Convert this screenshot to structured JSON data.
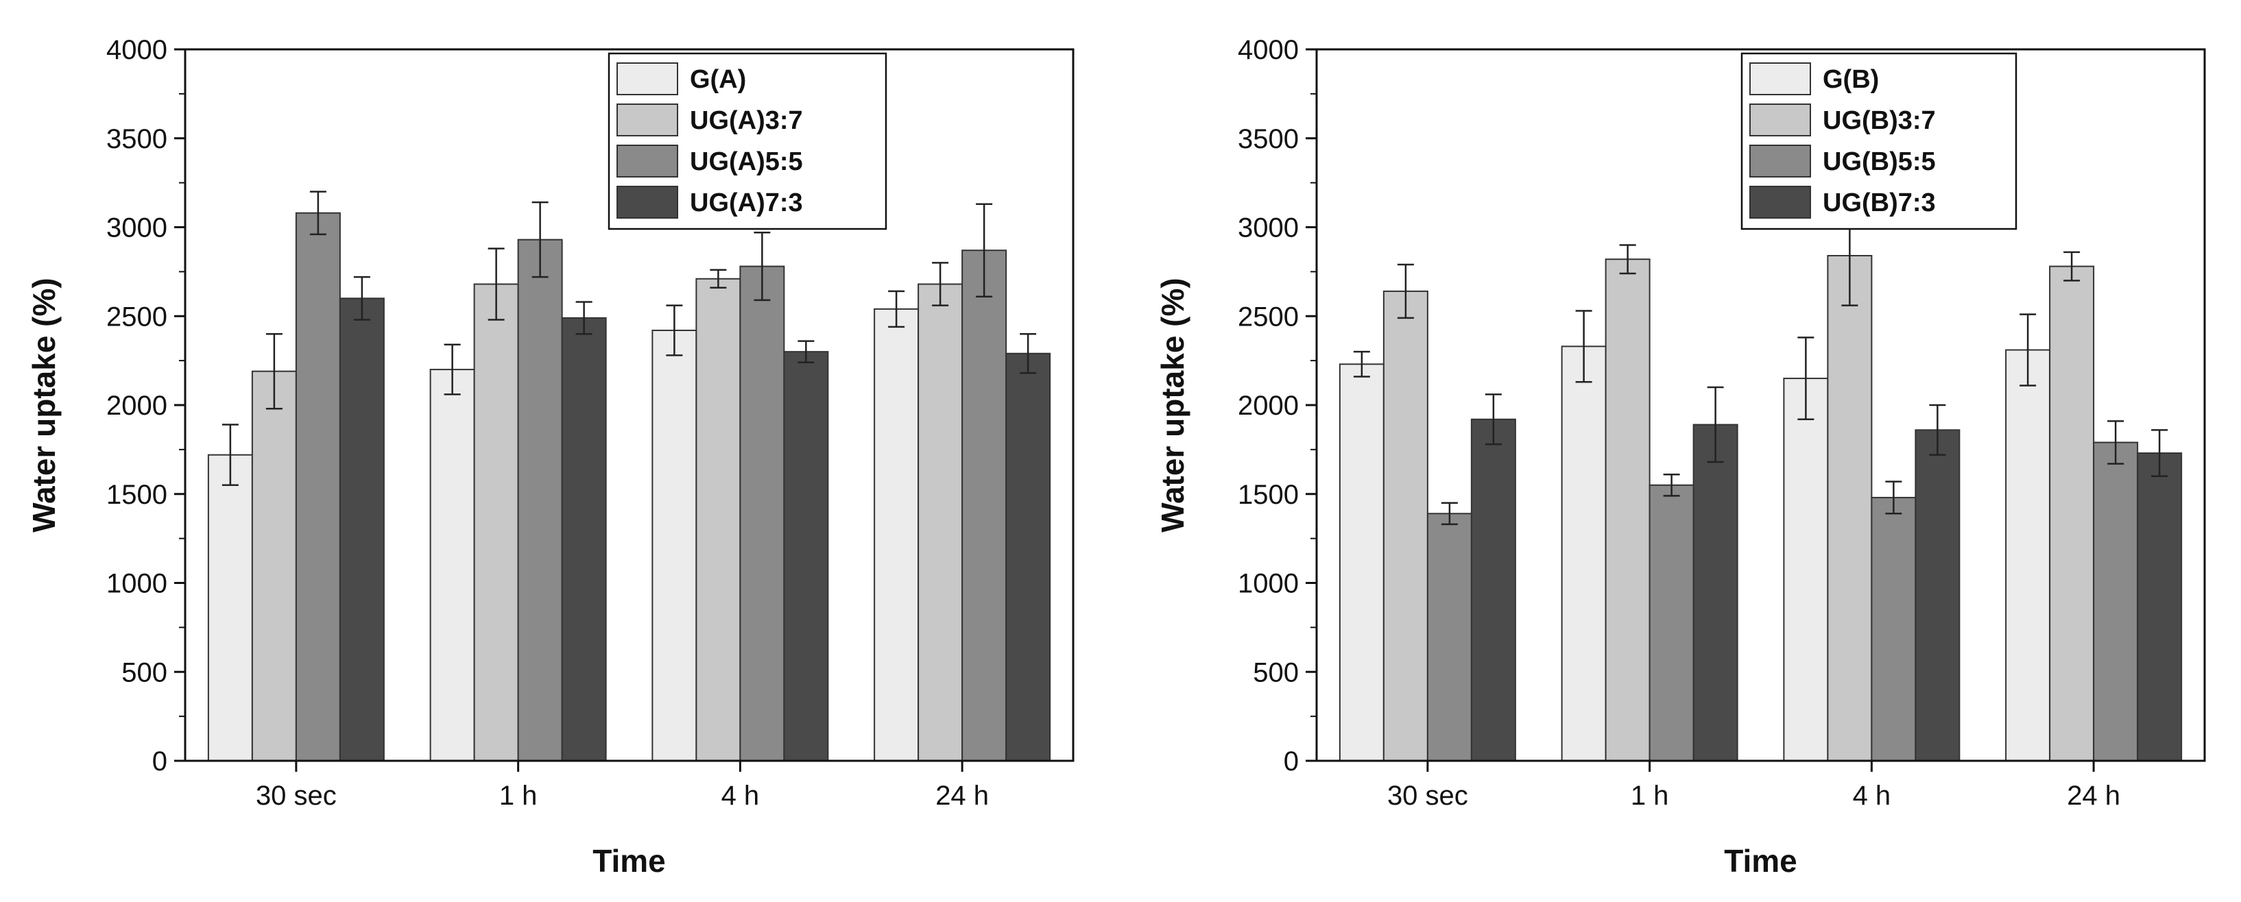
{
  "chart_data": [
    {
      "type": "bar",
      "title": "",
      "xlabel": "Time",
      "ylabel": "Water uptake (%)",
      "ylim": [
        0,
        4000
      ],
      "yticks": [
        "0",
        "500",
        "1000",
        "1500",
        "2000",
        "2500",
        "3000",
        "3500",
        "4000"
      ],
      "categories": [
        "30 sec",
        "1 h",
        "4 h",
        "24 h"
      ],
      "legend_position": "top-center",
      "series": [
        {
          "name": "G(A)",
          "color": "#ececec",
          "values": [
            1720,
            2200,
            2420,
            2540
          ],
          "errors": [
            170,
            140,
            140,
            100
          ]
        },
        {
          "name": "UG(A)3:7",
          "color": "#c8c8c8",
          "values": [
            2190,
            2680,
            2710,
            2680
          ],
          "errors": [
            210,
            200,
            50,
            120
          ]
        },
        {
          "name": "UG(A)5:5",
          "color": "#8a8a8a",
          "values": [
            3080,
            2930,
            2780,
            2870
          ],
          "errors": [
            120,
            210,
            190,
            260
          ]
        },
        {
          "name": "UG(A)7:3",
          "color": "#4a4a4a",
          "values": [
            2600,
            2490,
            2300,
            2290
          ],
          "errors": [
            120,
            90,
            60,
            110
          ]
        }
      ]
    },
    {
      "type": "bar",
      "title": "",
      "xlabel": "Time",
      "ylabel": "Water uptake (%)",
      "ylim": [
        0,
        4000
      ],
      "yticks": [
        "0",
        "500",
        "1000",
        "1500",
        "2000",
        "2500",
        "3000",
        "3500",
        "4000"
      ],
      "categories": [
        "30 sec",
        "1 h",
        "4 h",
        "24 h"
      ],
      "legend_position": "top-center",
      "series": [
        {
          "name": "G(B)",
          "color": "#ececec",
          "values": [
            2230,
            2330,
            2150,
            2310
          ],
          "errors": [
            70,
            200,
            230,
            200
          ]
        },
        {
          "name": "UG(B)3:7",
          "color": "#c8c8c8",
          "values": [
            2640,
            2820,
            2840,
            2780
          ],
          "errors": [
            150,
            80,
            280,
            80
          ]
        },
        {
          "name": "UG(B)5:5",
          "color": "#8a8a8a",
          "values": [
            1390,
            1550,
            1480,
            1790
          ],
          "errors": [
            60,
            60,
            90,
            120
          ]
        },
        {
          "name": "UG(B)7:3",
          "color": "#4a4a4a",
          "values": [
            1920,
            1890,
            1860,
            1730
          ],
          "errors": [
            140,
            210,
            140,
            130
          ]
        }
      ]
    }
  ]
}
